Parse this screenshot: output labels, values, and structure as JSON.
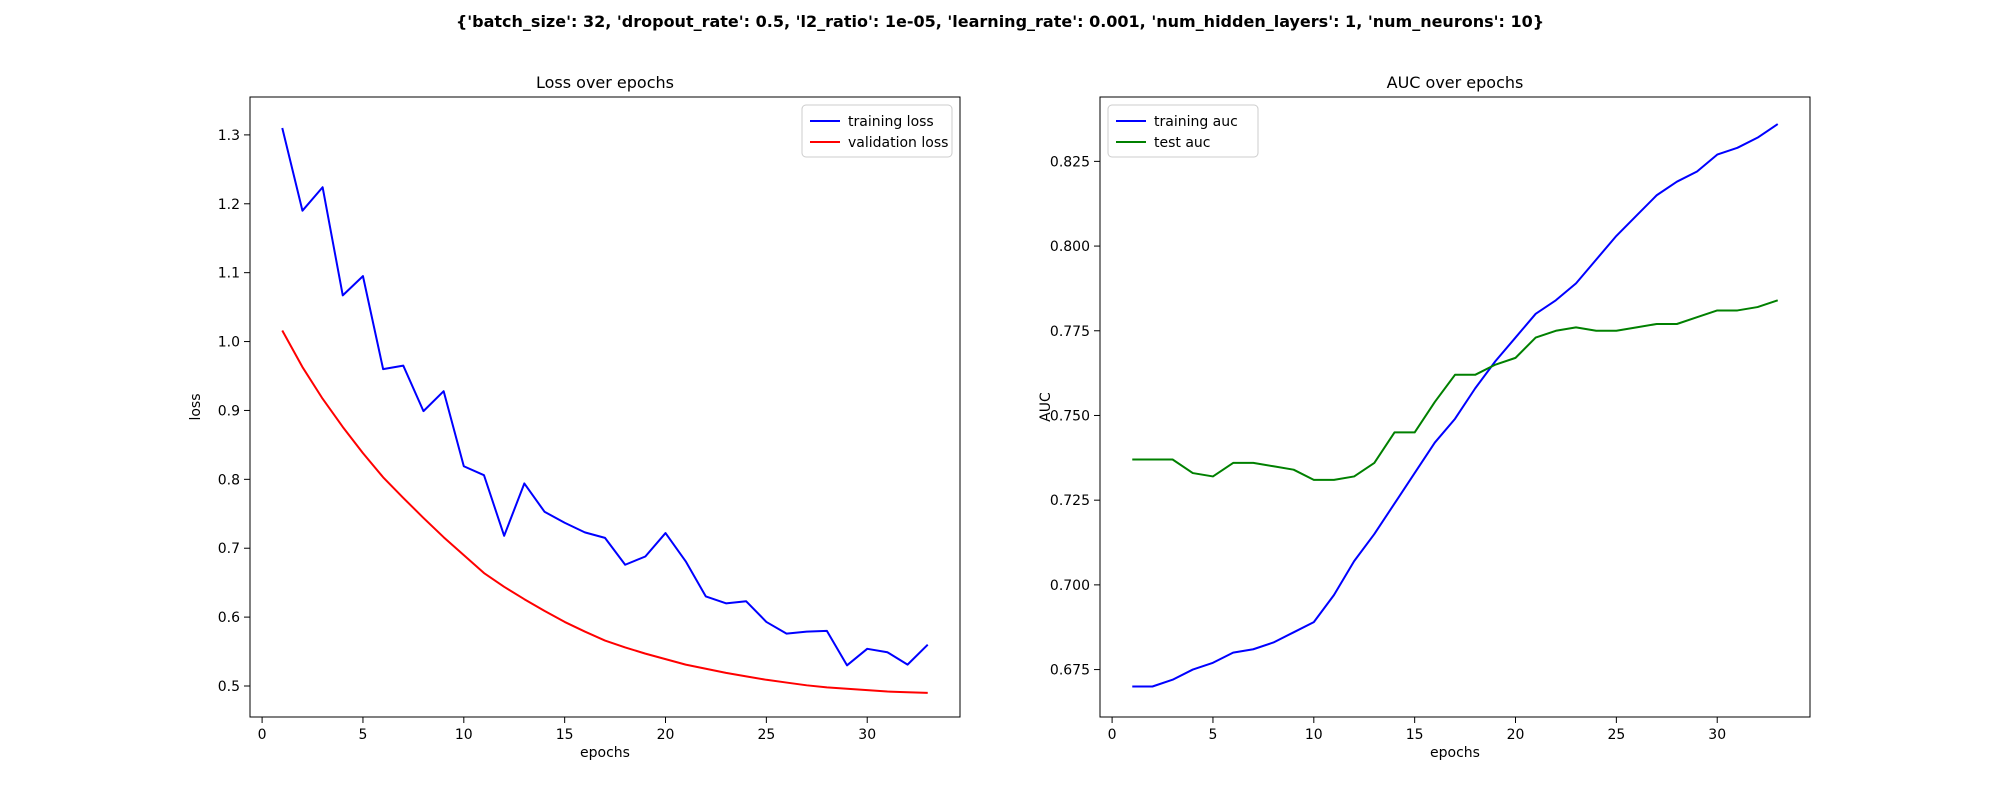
{
  "figure": {
    "suptitle": "{'batch_size': 32, 'dropout_rate': 0.5, 'l2_ratio': 1e-05, 'learning_rate': 0.001, 'num_hidden_layers': 1, 'num_neurons': 10}"
  },
  "chart_data": [
    {
      "type": "line",
      "title": "Loss over epochs",
      "xlabel": "epochs",
      "ylabel": "loss",
      "xlim": [
        -0.6,
        34.6
      ],
      "ylim": [
        0.455,
        1.355
      ],
      "xticks": [
        0,
        5,
        10,
        15,
        20,
        25,
        30
      ],
      "yticks": [
        0.5,
        0.6,
        0.7,
        0.8,
        0.9,
        1.0,
        1.1,
        1.2,
        1.3
      ],
      "ytick_labels": [
        "0.5",
        "0.6",
        "0.7",
        "0.8",
        "0.9",
        "1.0",
        "1.1",
        "1.2",
        "1.3"
      ],
      "grid": false,
      "legend_position": "top-right",
      "x": [
        1,
        2,
        3,
        4,
        5,
        6,
        7,
        8,
        9,
        10,
        11,
        12,
        13,
        14,
        15,
        16,
        17,
        18,
        19,
        20,
        21,
        22,
        23,
        24,
        25,
        26,
        27,
        28,
        29,
        30,
        31,
        32,
        33
      ],
      "series": [
        {
          "name": "training loss",
          "color": "#0000ff",
          "values": [
            1.31,
            1.19,
            1.224,
            1.067,
            1.095,
            0.96,
            0.965,
            0.899,
            0.928,
            0.819,
            0.806,
            0.718,
            0.794,
            0.753,
            0.737,
            0.723,
            0.715,
            0.676,
            0.688,
            0.722,
            0.681,
            0.63,
            0.62,
            0.623,
            0.593,
            0.576,
            0.579,
            0.58,
            0.53,
            0.554,
            0.549,
            0.531,
            0.56
          ]
        },
        {
          "name": "validation loss",
          "color": "#ff0000",
          "values": [
            1.016,
            0.963,
            0.917,
            0.876,
            0.838,
            0.803,
            0.773,
            0.744,
            0.716,
            0.69,
            0.664,
            0.644,
            0.626,
            0.609,
            0.593,
            0.579,
            0.566,
            0.556,
            0.547,
            0.539,
            0.531,
            0.525,
            0.519,
            0.514,
            0.509,
            0.505,
            0.501,
            0.498,
            0.496,
            0.494,
            0.492,
            0.491,
            0.49
          ]
        }
      ]
    },
    {
      "type": "line",
      "title": "AUC over epochs",
      "xlabel": "epochs",
      "ylabel": "AUC",
      "xlim": [
        -0.6,
        34.6
      ],
      "ylim": [
        0.661,
        0.844
      ],
      "xticks": [
        0,
        5,
        10,
        15,
        20,
        25,
        30
      ],
      "yticks": [
        0.675,
        0.7,
        0.725,
        0.75,
        0.775,
        0.8,
        0.825
      ],
      "ytick_labels": [
        "0.675",
        "0.700",
        "0.725",
        "0.750",
        "0.775",
        "0.800",
        "0.825"
      ],
      "grid": false,
      "legend_position": "top-left",
      "x": [
        1,
        2,
        3,
        4,
        5,
        6,
        7,
        8,
        9,
        10,
        11,
        12,
        13,
        14,
        15,
        16,
        17,
        18,
        19,
        20,
        21,
        22,
        23,
        24,
        25,
        26,
        27,
        28,
        29,
        30,
        31,
        32,
        33
      ],
      "series": [
        {
          "name": "training auc",
          "color": "#0000ff",
          "values": [
            0.67,
            0.67,
            0.672,
            0.675,
            0.677,
            0.68,
            0.681,
            0.683,
            0.686,
            0.689,
            0.697,
            0.707,
            0.715,
            0.724,
            0.733,
            0.742,
            0.749,
            0.758,
            0.766,
            0.773,
            0.78,
            0.784,
            0.789,
            0.796,
            0.803,
            0.809,
            0.815,
            0.819,
            0.822,
            0.827,
            0.829,
            0.832,
            0.836
          ]
        },
        {
          "name": "test auc",
          "color": "#008000",
          "values": [
            0.737,
            0.737,
            0.737,
            0.733,
            0.732,
            0.736,
            0.736,
            0.735,
            0.734,
            0.731,
            0.731,
            0.732,
            0.736,
            0.745,
            0.745,
            0.754,
            0.762,
            0.762,
            0.765,
            0.767,
            0.773,
            0.775,
            0.776,
            0.775,
            0.775,
            0.776,
            0.777,
            0.777,
            0.779,
            0.781,
            0.781,
            0.782,
            0.784
          ]
        }
      ]
    }
  ]
}
